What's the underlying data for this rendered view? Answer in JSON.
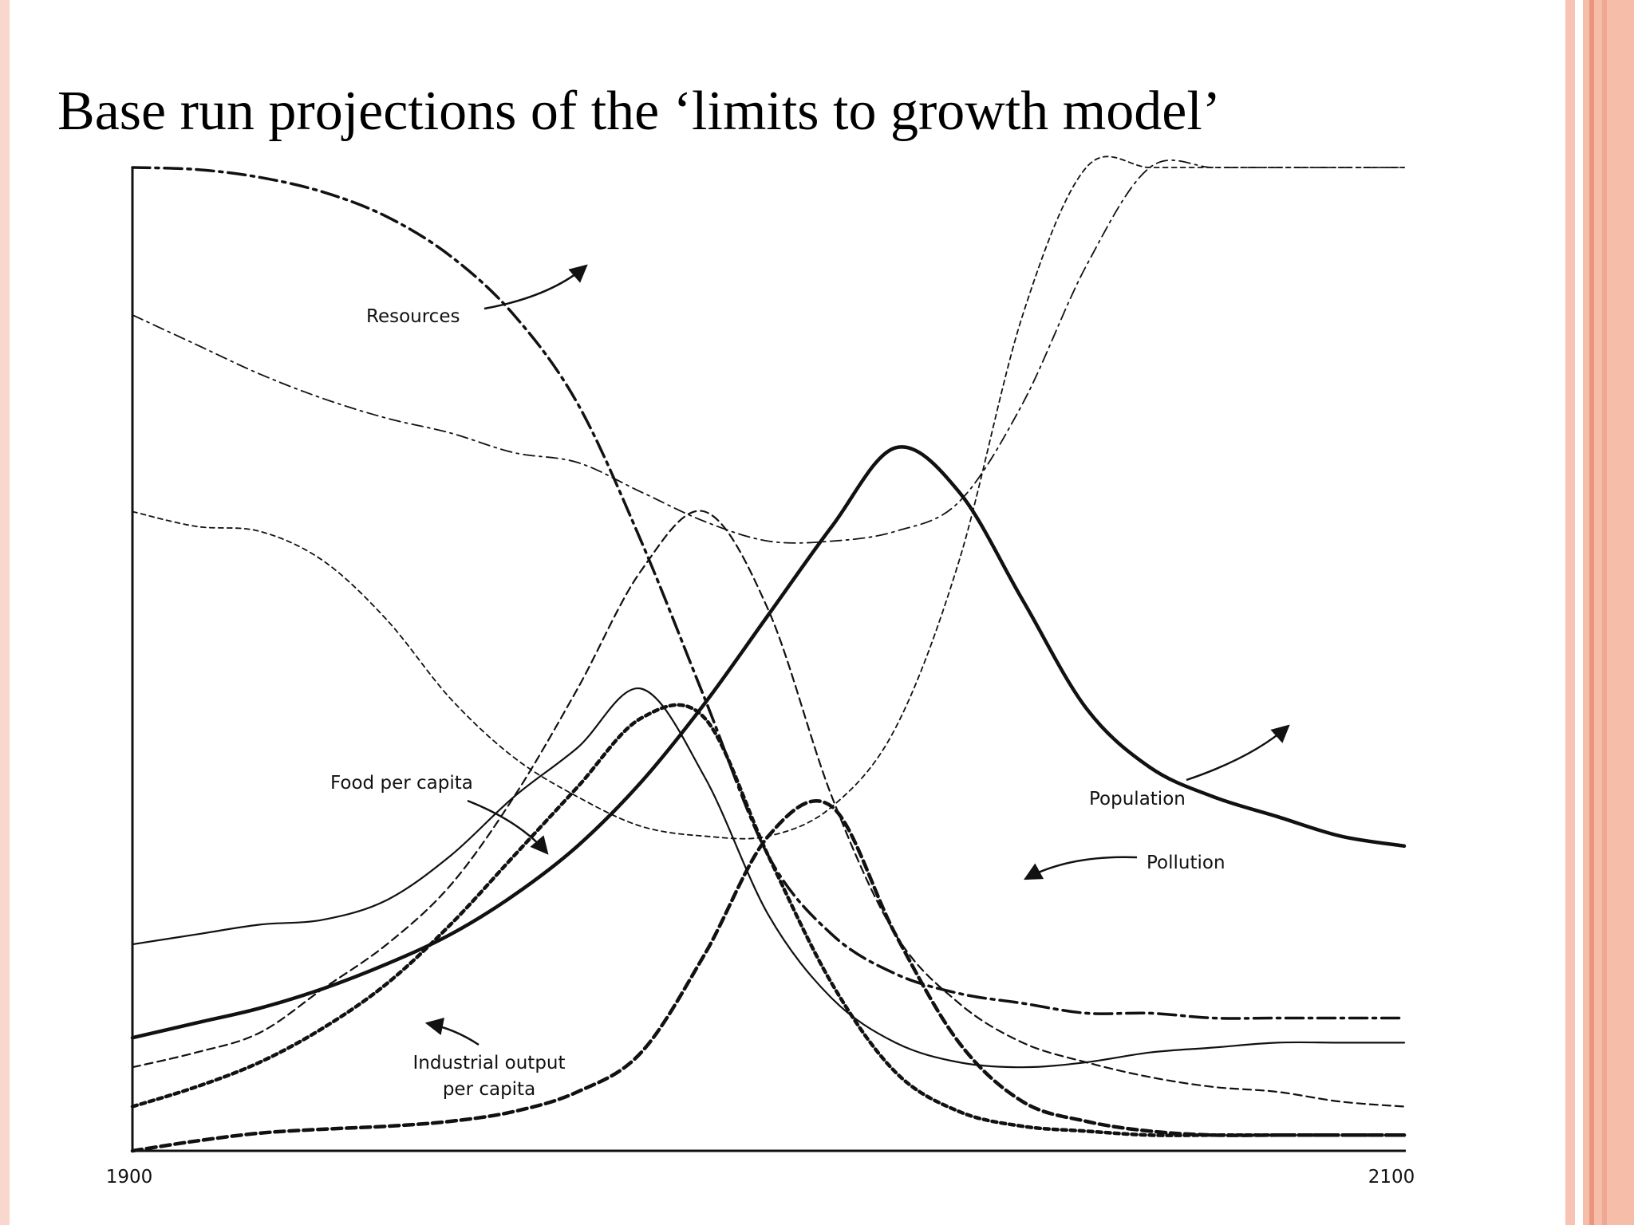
{
  "slide": {
    "title": "Base run projections of the ‘limits to growth model’"
  },
  "colors": {
    "accent_bar": "#f6bda9",
    "accent_dark": "#e89680",
    "ink": "#111111"
  },
  "chart_data": {
    "type": "line",
    "title": "",
    "xlabel": "",
    "ylabel": "",
    "xlim": [
      1900,
      2100
    ],
    "ylim": [
      0,
      1
    ],
    "x_tick_labels": [
      "1900",
      "2100"
    ],
    "grid": false,
    "legend": "none",
    "series": [
      {
        "name": "Resources",
        "label_lines": [
          "Resources"
        ],
        "x": [
          1900,
          1910,
          1920,
          1930,
          1940,
          1950,
          1960,
          1970,
          1980,
          1990,
          2000,
          2010,
          2020,
          2030,
          2040,
          2050,
          2060,
          2070,
          2080,
          2090,
          2100
        ],
        "y": [
          1.0,
          0.998,
          0.99,
          0.975,
          0.95,
          0.91,
          0.85,
          0.76,
          0.62,
          0.46,
          0.3,
          0.22,
          0.18,
          0.16,
          0.15,
          0.14,
          0.14,
          0.135,
          0.135,
          0.135,
          0.135
        ]
      },
      {
        "name": "Population",
        "label_lines": [
          "Population"
        ],
        "x": [
          1900,
          1910,
          1920,
          1930,
          1940,
          1950,
          1960,
          1970,
          1980,
          1990,
          2000,
          2010,
          2020,
          2030,
          2040,
          2050,
          2060,
          2070,
          2080,
          2090,
          2100
        ],
        "y": [
          0.115,
          0.13,
          0.145,
          0.165,
          0.19,
          0.22,
          0.26,
          0.31,
          0.375,
          0.455,
          0.545,
          0.635,
          0.715,
          0.67,
          0.56,
          0.45,
          0.39,
          0.36,
          0.34,
          0.32,
          0.31
        ]
      },
      {
        "name": "Food per capita",
        "label_lines": [
          "Food per capita"
        ],
        "x": [
          1900,
          1910,
          1920,
          1930,
          1940,
          1950,
          1960,
          1970,
          1980,
          1990,
          2000,
          2010,
          2020,
          2030,
          2040,
          2050,
          2060,
          2070,
          2080,
          2090,
          2100
        ],
        "y": [
          0.21,
          0.22,
          0.23,
          0.235,
          0.255,
          0.3,
          0.36,
          0.41,
          0.47,
          0.38,
          0.24,
          0.155,
          0.11,
          0.09,
          0.085,
          0.09,
          0.1,
          0.105,
          0.11,
          0.11,
          0.11
        ]
      },
      {
        "name": "Industrial output per capita",
        "label_lines": [
          "Industrial output",
          "per capita"
        ],
        "x": [
          1900,
          1910,
          1920,
          1930,
          1940,
          1950,
          1960,
          1970,
          1980,
          1990,
          2000,
          2010,
          2020,
          2030,
          2040,
          2050,
          2060,
          2070,
          2080,
          2090,
          2100
        ],
        "y": [
          0.045,
          0.065,
          0.09,
          0.125,
          0.17,
          0.23,
          0.3,
          0.37,
          0.44,
          0.44,
          0.3,
          0.17,
          0.08,
          0.04,
          0.025,
          0.02,
          0.016,
          0.016,
          0.016,
          0.016,
          0.016
        ]
      },
      {
        "name": "Pollution",
        "label_lines": [
          "Pollution"
        ],
        "x": [
          1900,
          1910,
          1920,
          1930,
          1940,
          1950,
          1960,
          1970,
          1980,
          1990,
          2000,
          2010,
          2020,
          2030,
          2040,
          2050,
          2060,
          2070,
          2080,
          2090,
          2100
        ],
        "y": [
          0.0,
          0.01,
          0.018,
          0.022,
          0.025,
          0.03,
          0.04,
          0.06,
          0.1,
          0.2,
          0.32,
          0.35,
          0.22,
          0.11,
          0.05,
          0.03,
          0.02,
          0.016,
          0.016,
          0.016,
          0.016
        ]
      },
      {
        "name": "",
        "label_lines": [],
        "x": [
          1900,
          1910,
          1920,
          1930,
          1940,
          1950,
          1960,
          1970,
          1980,
          1990,
          2000,
          2010,
          2020,
          2030,
          2040,
          2050,
          2060,
          2070,
          2080,
          2090,
          2100
        ],
        "y": [
          0.85,
          0.82,
          0.79,
          0.765,
          0.745,
          0.73,
          0.71,
          0.7,
          0.67,
          0.64,
          0.62,
          0.62,
          0.63,
          0.66,
          0.76,
          0.9,
          1.0,
          1.0,
          1.0,
          1.0,
          1.0
        ]
      },
      {
        "name": "",
        "label_lines": [],
        "x": [
          1900,
          1910,
          1920,
          1930,
          1940,
          1950,
          1960,
          1970,
          1980,
          1990,
          2000,
          2010,
          2020,
          2030,
          2040,
          2050,
          2060,
          2070,
          2080,
          2090,
          2100
        ],
        "y": [
          0.65,
          0.635,
          0.63,
          0.6,
          0.54,
          0.46,
          0.4,
          0.36,
          0.33,
          0.32,
          0.32,
          0.35,
          0.43,
          0.6,
          0.85,
          1.0,
          1.0,
          1.0,
          1.0,
          1.0,
          1.0
        ]
      },
      {
        "name": "",
        "label_lines": [],
        "x": [
          1900,
          1910,
          1920,
          1930,
          1940,
          1950,
          1960,
          1970,
          1980,
          1990,
          2000,
          2010,
          2020,
          2030,
          2040,
          2050,
          2060,
          2070,
          2080,
          2090,
          2100
        ],
        "y": [
          0.085,
          0.1,
          0.12,
          0.165,
          0.21,
          0.27,
          0.36,
          0.47,
          0.59,
          0.65,
          0.55,
          0.36,
          0.22,
          0.15,
          0.11,
          0.09,
          0.075,
          0.065,
          0.06,
          0.05,
          0.045
        ]
      }
    ]
  }
}
